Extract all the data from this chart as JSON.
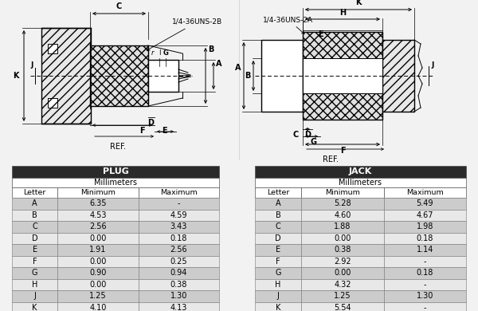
{
  "plug_title": "PLUG",
  "jack_title": "JACK",
  "plug_rows": [
    [
      "A",
      "6.35",
      "-"
    ],
    [
      "B",
      "4.53",
      "4.59"
    ],
    [
      "C",
      "2.56",
      "3.43"
    ],
    [
      "D",
      "0.00",
      "0.18"
    ],
    [
      "E",
      "1.91",
      "2.56"
    ],
    [
      "F",
      "0.00",
      "0.25"
    ],
    [
      "G",
      "0.90",
      "0.94"
    ],
    [
      "H",
      "0.00",
      "0.38"
    ],
    [
      "J",
      "1.25",
      "1.30"
    ],
    [
      "K",
      "4.10",
      "4.13"
    ]
  ],
  "jack_rows": [
    [
      "A",
      "5.28",
      "5.49"
    ],
    [
      "B",
      "4.60",
      "4.67"
    ],
    [
      "C",
      "1.88",
      "1.98"
    ],
    [
      "D",
      "0.00",
      "0.18"
    ],
    [
      "E",
      "0.38",
      "1.14"
    ],
    [
      "F",
      "2.92",
      "-"
    ],
    [
      "G",
      "0.00",
      "0.18"
    ],
    [
      "H",
      "4.32",
      "-"
    ],
    [
      "J",
      "1.25",
      "1.30"
    ],
    [
      "K",
      "5.54",
      "-"
    ]
  ],
  "bg_color": "#f2f2f2",
  "header_bg": "#2a2a2a",
  "header_text": "#ffffff",
  "row_odd": "#cccccc",
  "row_even": "#e8e8e8",
  "plug_annotation": "1/4-36UNS-2B",
  "jack_annotation": "1/4-36UNS-2A",
  "ref_text": "REF."
}
